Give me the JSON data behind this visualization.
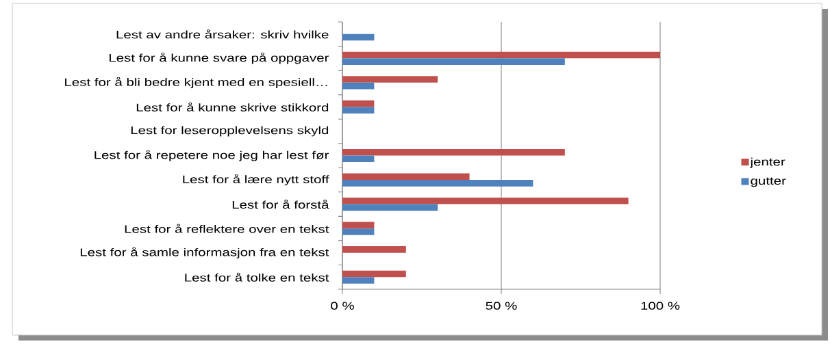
{
  "chart_data": {
    "type": "bar",
    "orientation": "horizontal",
    "categories": [
      "Lest av andre årsaker: skriv hvilke",
      "Lest for å kunne svare på oppgaver",
      "Lest for å bli bedre kjent med en spesiell…",
      "Lest for å kunne skrive stikkord",
      "Lest for leseropplevelsens skyld",
      "Lest for å repetere noe jeg har lest før",
      "Lest for å lære nytt stoff",
      "Lest for å forstå",
      "Lest for å reflektere over en tekst",
      "Lest for å samle informasjon fra en tekst",
      "Lest for å tolke en tekst"
    ],
    "series": [
      {
        "name": "jenter",
        "color": "#c0504d",
        "values": [
          0,
          100,
          30,
          10,
          0,
          70,
          40,
          90,
          10,
          20,
          20
        ]
      },
      {
        "name": "gutter",
        "color": "#4f81bd",
        "values": [
          10,
          70,
          10,
          10,
          0,
          10,
          60,
          30,
          10,
          0,
          10
        ]
      }
    ],
    "xlim": [
      0,
      100
    ],
    "xticks": [
      {
        "value": 0,
        "label": "0 %"
      },
      {
        "value": 50,
        "label": "50 %"
      },
      {
        "value": 100,
        "label": "100 %"
      }
    ],
    "grid": "x",
    "legend": "right"
  }
}
